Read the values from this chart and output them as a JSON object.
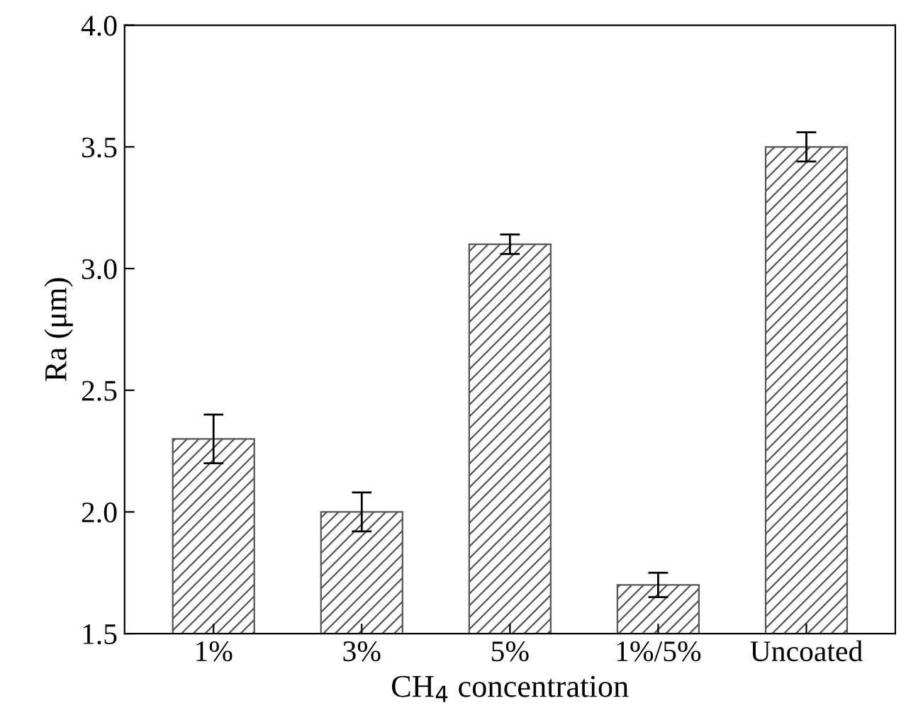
{
  "chart_data": {
    "type": "bar",
    "xlabel": "CH$_{4}$ concentration",
    "ylabel": "Ra (μm)",
    "categories": [
      "1%",
      "3%",
      "5%",
      "1%/5%",
      "Uncoated"
    ],
    "values": [
      2.3,
      2.0,
      3.1,
      1.7,
      3.5
    ],
    "errors": [
      0.1,
      0.08,
      0.04,
      0.05,
      0.06
    ],
    "color": "#555555",
    "ylim": [
      1.5,
      4.0
    ],
    "yticks": [
      1.5,
      {
        "value": 2,
        "label": "2.0"
      },
      2.5,
      {
        "value": 3,
        "label": "3.0"
      },
      3.5,
      {
        "value": 4,
        "label": "4.0"
      }
    ],
    "grid": false,
    "legend": false
  }
}
